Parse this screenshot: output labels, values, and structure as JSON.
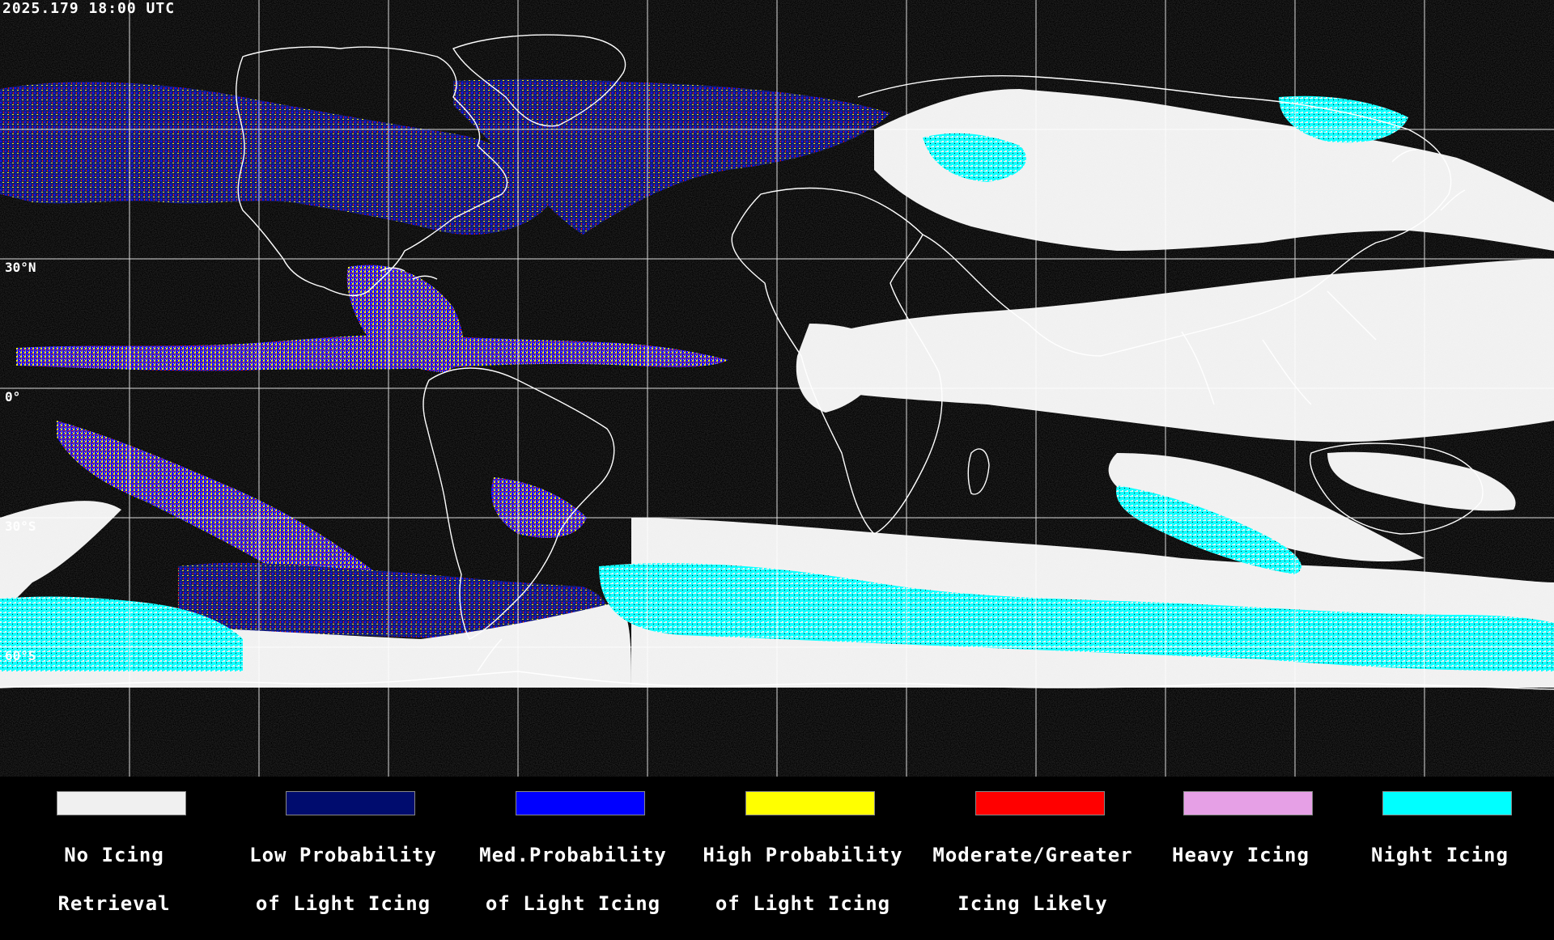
{
  "map": {
    "timestamp": "2025.179 18:00 UTC",
    "latitude_labels": [
      "30°N",
      "0°",
      "30°S",
      "60°S"
    ],
    "colors": {
      "background": "#000000",
      "grid": "#ffffff",
      "coastline": "#ffffff"
    }
  },
  "legend": {
    "items": [
      {
        "line1": "No Icing",
        "line2": "Retrieval",
        "color": "#f0f0f0"
      },
      {
        "line1": "Low Probability",
        "line2": "of Light Icing",
        "color": "#000c6e"
      },
      {
        "line1": "Med.Probability",
        "line2": "of Light Icing",
        "color": "#0000ff"
      },
      {
        "line1": "High Probability",
        "line2": "of Light Icing",
        "color": "#ffff00"
      },
      {
        "line1": "Moderate/Greater",
        "line2": "Icing Likely",
        "color": "#ff0000"
      },
      {
        "line1": "Heavy Icing",
        "line2": "",
        "color": "#e6a0e6"
      },
      {
        "line1": "Night Icing",
        "line2": "",
        "color": "#00ffff"
      }
    ]
  }
}
